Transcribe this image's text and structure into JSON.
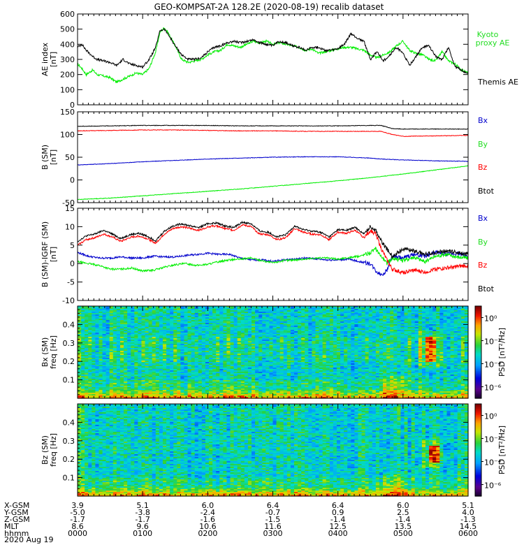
{
  "title": "GEO-KOMPSAT-2A 128.2E (2020-08-19) recalib dataset",
  "date_label": "2020 Aug 19",
  "colors": {
    "black": "#000000",
    "red": "#ff0000",
    "green": "#00ee00",
    "blue": "#0000cc",
    "legend_green": "#22dd22"
  },
  "chart_data": [
    {
      "type": "line",
      "id": "ae",
      "ylabel": "AE index",
      "yunit": "[nT]",
      "ylim": [
        0,
        600
      ],
      "yticks": [
        0,
        100,
        200,
        300,
        400,
        500,
        600
      ],
      "series": [
        {
          "name": "Kyoto proxy AE",
          "color": "#00ee00",
          "x": [
            0,
            4,
            8,
            14,
            18,
            24,
            30,
            36,
            42,
            48,
            54,
            60,
            66,
            72,
            76,
            80,
            84,
            90,
            96,
            102,
            108,
            114,
            120,
            126,
            132,
            138,
            144,
            150,
            156,
            162,
            168,
            174,
            180,
            186,
            192,
            198,
            204,
            210,
            216,
            222,
            228,
            234,
            240,
            246,
            252,
            258,
            264,
            270,
            276,
            282,
            288,
            294,
            300,
            306,
            312,
            318,
            324,
            330,
            336,
            342,
            348,
            354,
            360
          ],
          "y": [
            270,
            240,
            200,
            230,
            200,
            190,
            180,
            150,
            170,
            190,
            210,
            200,
            240,
            350,
            480,
            510,
            470,
            390,
            300,
            280,
            290,
            300,
            330,
            350,
            360,
            400,
            390,
            380,
            400,
            420,
            410,
            420,
            400,
            410,
            400,
            390,
            380,
            360,
            370,
            340,
            350,
            360,
            370,
            380,
            380,
            370,
            360,
            330,
            310,
            330,
            350,
            390,
            420,
            360,
            340,
            330,
            300,
            290,
            350,
            290,
            270,
            230,
            210
          ]
        },
        {
          "name": "Themis AE",
          "color": "#000000",
          "x": [
            0,
            4,
            8,
            14,
            18,
            24,
            30,
            36,
            42,
            48,
            54,
            60,
            66,
            72,
            76,
            80,
            84,
            90,
            96,
            102,
            108,
            114,
            120,
            126,
            132,
            138,
            144,
            150,
            156,
            162,
            168,
            174,
            180,
            186,
            192,
            198,
            204,
            210,
            216,
            222,
            228,
            234,
            240,
            246,
            252,
            258,
            264,
            270,
            276,
            282,
            288,
            294,
            300,
            306,
            312,
            318,
            324,
            330,
            336,
            342,
            348,
            354,
            360
          ],
          "y": [
            380,
            400,
            360,
            320,
            300,
            290,
            280,
            260,
            300,
            270,
            260,
            250,
            300,
            380,
            490,
            500,
            460,
            390,
            330,
            300,
            300,
            310,
            350,
            380,
            390,
            410,
            420,
            410,
            420,
            430,
            410,
            400,
            390,
            420,
            410,
            390,
            380,
            360,
            380,
            380,
            360,
            360,
            370,
            400,
            470,
            440,
            420,
            300,
            350,
            290,
            330,
            380,
            340,
            260,
            320,
            380,
            390,
            320,
            300,
            380,
            250,
            230,
            200
          ]
        }
      ]
    },
    {
      "type": "line",
      "id": "bsm",
      "ylabel": "B (SM)",
      "yunit": "[nT]",
      "ylim": [
        -50,
        150
      ],
      "yticks": [
        -50,
        0,
        50,
        100,
        150
      ],
      "series": [
        {
          "name": "Bx",
          "color": "#0000cc",
          "x": [
            0,
            30,
            60,
            90,
            120,
            150,
            180,
            210,
            240,
            270,
            280,
            300,
            330,
            360
          ],
          "y": [
            33,
            36,
            40,
            43,
            46,
            48,
            50,
            51,
            51,
            48,
            46,
            44,
            42,
            41
          ]
        },
        {
          "name": "By",
          "color": "#00ee00",
          "x": [
            0,
            30,
            60,
            90,
            120,
            150,
            180,
            210,
            240,
            270,
            300,
            330,
            360
          ],
          "y": [
            -43,
            -40,
            -35,
            -30,
            -25,
            -20,
            -14,
            -8,
            -2,
            5,
            13,
            22,
            31
          ]
        },
        {
          "name": "Bz",
          "color": "#ff0000",
          "x": [
            0,
            30,
            60,
            90,
            120,
            150,
            180,
            210,
            240,
            270,
            280,
            290,
            300,
            330,
            360
          ],
          "y": [
            108,
            109,
            110,
            110,
            109,
            108,
            108,
            107,
            107,
            107,
            107,
            100,
            96,
            97,
            98
          ]
        },
        {
          "name": "Btot",
          "color": "#000000",
          "x": [
            0,
            30,
            60,
            90,
            120,
            150,
            180,
            210,
            240,
            270,
            280,
            290,
            300,
            330,
            360
          ],
          "y": [
            118,
            119,
            120,
            120,
            120,
            119,
            119,
            119,
            119,
            120,
            120,
            113,
            112,
            112,
            112
          ]
        }
      ]
    },
    {
      "type": "line",
      "id": "bigrf",
      "ylabel": "B (SM)-IGRF (SM)",
      "yunit": "[nT]",
      "ylim": [
        -10,
        15
      ],
      "yticks": [
        -10,
        -5,
        0,
        5,
        10,
        15
      ],
      "series": [
        {
          "name": "Bx",
          "color": "#0000cc",
          "x": [
            0,
            10,
            20,
            30,
            40,
            50,
            60,
            70,
            80,
            90,
            100,
            110,
            120,
            130,
            140,
            150,
            160,
            170,
            180,
            190,
            200,
            210,
            220,
            230,
            240,
            250,
            260,
            270,
            275,
            280,
            285,
            290,
            300,
            310,
            320,
            330,
            340,
            350,
            360
          ],
          "y": [
            3,
            2,
            1.5,
            1.5,
            1.8,
            1.5,
            1.5,
            2,
            1.8,
            1.8,
            2.2,
            2.5,
            2.8,
            2.5,
            2.5,
            1.5,
            1,
            1,
            0.6,
            1,
            1.2,
            1.5,
            1.3,
            1,
            1,
            1.2,
            0.5,
            0,
            -2,
            -3,
            -2,
            2,
            1.5,
            2.5,
            2,
            3,
            2.5,
            2.8,
            2
          ]
        },
        {
          "name": "By",
          "color": "#00ee00",
          "x": [
            0,
            10,
            20,
            30,
            40,
            50,
            60,
            70,
            80,
            90,
            100,
            110,
            120,
            130,
            140,
            150,
            160,
            170,
            180,
            190,
            200,
            210,
            220,
            230,
            240,
            250,
            260,
            270,
            275,
            280,
            285,
            290,
            300,
            310,
            320,
            330,
            340,
            350,
            360
          ],
          "y": [
            0.5,
            0,
            -0.5,
            -1.5,
            -1.5,
            -1.2,
            -2,
            -1.8,
            -1,
            -0.3,
            0,
            -0.5,
            -0.2,
            0.5,
            1,
            1.2,
            1.5,
            0.8,
            0.2,
            0.8,
            1,
            1.2,
            1.5,
            1.5,
            1.2,
            1.6,
            2,
            3,
            4,
            2,
            0,
            1.5,
            0.8,
            1.8,
            0.5,
            2,
            2.5,
            1.8,
            1.5
          ]
        },
        {
          "name": "Bz",
          "color": "#ff0000",
          "x": [
            0,
            8,
            16,
            24,
            32,
            40,
            48,
            56,
            64,
            72,
            80,
            88,
            96,
            104,
            112,
            120,
            128,
            136,
            144,
            152,
            160,
            168,
            176,
            184,
            192,
            200,
            208,
            216,
            224,
            232,
            240,
            248,
            256,
            264,
            270,
            275,
            280,
            285,
            290,
            300,
            310,
            320,
            330,
            340,
            350,
            360
          ],
          "y": [
            5,
            6.5,
            7,
            8,
            7.2,
            6,
            7,
            7.5,
            6.8,
            5.5,
            8,
            9.5,
            10,
            9.5,
            9,
            10,
            10.2,
            9.5,
            9,
            10.5,
            10,
            8,
            7.8,
            6.5,
            7,
            9.5,
            8.5,
            8,
            7.8,
            6.5,
            8.5,
            8.2,
            9,
            7,
            9,
            8,
            4,
            1,
            -1.5,
            -2.5,
            -1.8,
            -2.3,
            -1.5,
            -1.2,
            -0.8,
            -0.5
          ]
        },
        {
          "name": "Btot",
          "color": "#000000",
          "x": [
            0,
            8,
            16,
            24,
            32,
            40,
            48,
            56,
            64,
            72,
            80,
            88,
            96,
            104,
            112,
            120,
            128,
            136,
            144,
            152,
            160,
            168,
            176,
            184,
            192,
            200,
            208,
            216,
            224,
            232,
            240,
            248,
            256,
            264,
            270,
            275,
            280,
            285,
            290,
            300,
            310,
            320,
            330,
            340,
            350,
            360
          ],
          "y": [
            6,
            7.5,
            8,
            9,
            8,
            6.8,
            7.8,
            8.2,
            7.5,
            6.2,
            8.8,
            10.2,
            10.8,
            10.2,
            9.8,
            10.8,
            11,
            10.2,
            9.8,
            11.2,
            10.8,
            8.8,
            8.5,
            7.2,
            7.8,
            10.2,
            9.2,
            8.8,
            8.5,
            7.2,
            9.2,
            9,
            9.8,
            8,
            10,
            9,
            6,
            4,
            2,
            4,
            3.5,
            2.5,
            3,
            3.5,
            3,
            2.5
          ]
        }
      ]
    },
    {
      "type": "heatmap",
      "id": "bx_spec",
      "ylabel": "Bx (SM)",
      "yunit": "freq [Hz]",
      "ylim": [
        0,
        0.5
      ],
      "yticks": [
        0.1,
        0.2,
        0.3,
        0.4
      ],
      "colorbar_label": "PSD [nT²/Hz]",
      "colorbar_ticks": [
        "10⁰",
        "10⁻²",
        "10⁻⁴",
        "10⁻⁶"
      ],
      "colorbar_tick_values": [
        0,
        -2,
        -4,
        -6
      ],
      "color_range": [
        -7,
        1
      ],
      "enhancement": {
        "x": [
          322,
          332
        ],
        "freq": [
          0.2,
          0.33
        ]
      }
    },
    {
      "type": "heatmap",
      "id": "bz_spec",
      "ylabel": "Bz (SM)",
      "yunit": "freq [Hz]",
      "ylim": [
        0,
        0.5
      ],
      "yticks": [
        0.1,
        0.2,
        0.3,
        0.4
      ],
      "colorbar_label": "PSD [nT²/Hz]",
      "colorbar_ticks": [
        "10⁰",
        "10⁻²",
        "10⁻⁴",
        "10⁻⁶"
      ],
      "colorbar_tick_values": [
        0,
        -2,
        -4,
        -6
      ],
      "color_range": [
        -7,
        1
      ],
      "enhancement": {
        "x": [
          324,
          334
        ],
        "freq": [
          0.18,
          0.27
        ]
      }
    }
  ],
  "xaxis": {
    "range": [
      0,
      360
    ],
    "tick_x": [
      0,
      60,
      120,
      180,
      240,
      300,
      360
    ],
    "rows": [
      {
        "label": "X-GSM",
        "values": [
          "3.9",
          "5.1",
          "6.0",
          "6.4",
          "6.4",
          "6.0",
          "5.1"
        ]
      },
      {
        "label": "Y-GSM",
        "values": [
          "-5.0",
          "-3.8",
          "-2.4",
          "-0.7",
          "0.9",
          "2.5",
          "4.0"
        ]
      },
      {
        "label": "Z-GSM",
        "values": [
          "-1.7",
          "-1.7",
          "-1.6",
          "-1.5",
          "-1.4",
          "-1.4",
          "-1.3"
        ]
      },
      {
        "label": "MLT",
        "values": [
          "8.6",
          "9.6",
          "10.6",
          "11.6",
          "12.5",
          "13.5",
          "14.5"
        ]
      },
      {
        "label": "hhmm",
        "values": [
          "0000",
          "0100",
          "0200",
          "0300",
          "0400",
          "0500",
          "0600"
        ]
      }
    ]
  }
}
